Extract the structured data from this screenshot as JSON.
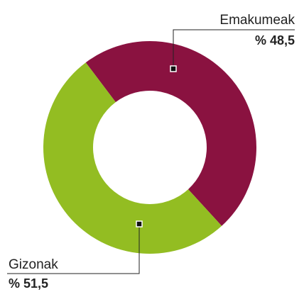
{
  "chart_data": {
    "type": "pie",
    "categories": [
      "Emakumeak",
      "Gizonak"
    ],
    "values": [
      48.5,
      51.5
    ],
    "value_labels": [
      "% 48,5",
      "% 51,5"
    ],
    "colors": [
      "#8a1240",
      "#93bd22"
    ]
  }
}
